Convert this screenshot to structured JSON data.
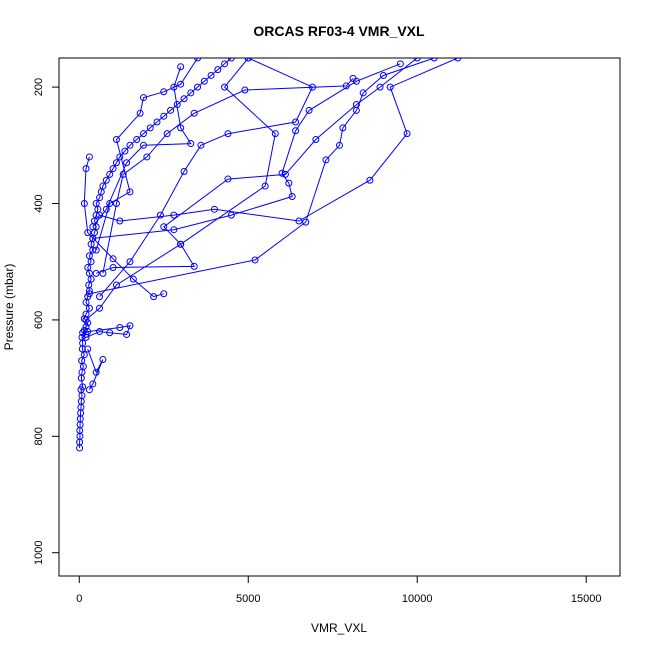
{
  "chart_data": {
    "type": "line",
    "title": "ORCAS RF03-4 VMR_VXL",
    "xlabel": "VMR_VXL",
    "ylabel": "Pressure (mbar)",
    "xlim": [
      -600,
      16000
    ],
    "ylim": [
      1040,
      150
    ],
    "y_reversed": true,
    "x_ticks": [
      0,
      5000,
      10000,
      15000
    ],
    "y_ticks": [
      200,
      400,
      600,
      800,
      1000
    ],
    "grid": false,
    "legend": "none",
    "markers": "open-circle",
    "color": "#0000ff",
    "series": [
      {
        "values": [
          {
            "x": 10,
            "y": 820
          },
          {
            "x": 10,
            "y": 810
          },
          {
            "x": 20,
            "y": 800
          },
          {
            "x": 15,
            "y": 790
          },
          {
            "x": 25,
            "y": 780
          },
          {
            "x": 30,
            "y": 770
          },
          {
            "x": 40,
            "y": 760
          },
          {
            "x": 50,
            "y": 750
          },
          {
            "x": 60,
            "y": 740
          },
          {
            "x": 80,
            "y": 730
          },
          {
            "x": 50,
            "y": 720
          },
          {
            "x": 100,
            "y": 715
          },
          {
            "x": 60,
            "y": 700
          },
          {
            "x": 80,
            "y": 690
          },
          {
            "x": 120,
            "y": 680
          },
          {
            "x": 70,
            "y": 670
          },
          {
            "x": 150,
            "y": 660
          },
          {
            "x": 90,
            "y": 650
          },
          {
            "x": 100,
            "y": 640
          },
          {
            "x": 80,
            "y": 630
          },
          {
            "x": 200,
            "y": 625
          },
          {
            "x": 100,
            "y": 622
          },
          {
            "x": 150,
            "y": 618
          },
          {
            "x": 200,
            "y": 612
          },
          {
            "x": 250,
            "y": 605
          },
          {
            "x": 150,
            "y": 598
          },
          {
            "x": 200,
            "y": 590
          },
          {
            "x": 300,
            "y": 580
          },
          {
            "x": 200,
            "y": 570
          },
          {
            "x": 250,
            "y": 560
          },
          {
            "x": 300,
            "y": 550
          },
          {
            "x": 280,
            "y": 540
          },
          {
            "x": 350,
            "y": 530
          },
          {
            "x": 300,
            "y": 520
          },
          {
            "x": 250,
            "y": 510
          },
          {
            "x": 350,
            "y": 500
          },
          {
            "x": 300,
            "y": 490
          },
          {
            "x": 400,
            "y": 480
          },
          {
            "x": 350,
            "y": 470
          },
          {
            "x": 400,
            "y": 460
          },
          {
            "x": 450,
            "y": 450
          },
          {
            "x": 500,
            "y": 440
          },
          {
            "x": 450,
            "y": 430
          },
          {
            "x": 500,
            "y": 420
          },
          {
            "x": 550,
            "y": 410
          },
          {
            "x": 500,
            "y": 400
          },
          {
            "x": 600,
            "y": 390
          },
          {
            "x": 650,
            "y": 380
          },
          {
            "x": 700,
            "y": 370
          },
          {
            "x": 800,
            "y": 360
          },
          {
            "x": 900,
            "y": 350
          },
          {
            "x": 1000,
            "y": 340
          },
          {
            "x": 1100,
            "y": 330
          },
          {
            "x": 1200,
            "y": 320
          },
          {
            "x": 1350,
            "y": 310
          },
          {
            "x": 1500,
            "y": 300
          },
          {
            "x": 1700,
            "y": 290
          },
          {
            "x": 1900,
            "y": 280
          },
          {
            "x": 2100,
            "y": 270
          },
          {
            "x": 2300,
            "y": 260
          },
          {
            "x": 2500,
            "y": 250
          },
          {
            "x": 2700,
            "y": 240
          },
          {
            "x": 2900,
            "y": 230
          },
          {
            "x": 3100,
            "y": 220
          },
          {
            "x": 3300,
            "y": 210
          },
          {
            "x": 3500,
            "y": 200
          },
          {
            "x": 3700,
            "y": 190
          },
          {
            "x": 3900,
            "y": 180
          },
          {
            "x": 4100,
            "y": 170
          },
          {
            "x": 4300,
            "y": 160
          },
          {
            "x": 4500,
            "y": 150
          }
        ]
      },
      {
        "values": [
          {
            "x": 300,
            "y": 320
          },
          {
            "x": 200,
            "y": 340
          },
          {
            "x": 150,
            "y": 400
          },
          {
            "x": 250,
            "y": 450
          },
          {
            "x": 1000,
            "y": 495
          },
          {
            "x": 1600,
            "y": 530
          },
          {
            "x": 2200,
            "y": 560
          },
          {
            "x": 2500,
            "y": 555
          }
        ]
      },
      {
        "values": [
          {
            "x": 600,
            "y": 420
          },
          {
            "x": 1200,
            "y": 430
          },
          {
            "x": 2800,
            "y": 420
          },
          {
            "x": 4000,
            "y": 410
          },
          {
            "x": 6500,
            "y": 430
          },
          {
            "x": 8600,
            "y": 360
          },
          {
            "x": 9700,
            "y": 280
          },
          {
            "x": 9200,
            "y": 200
          },
          {
            "x": 11200,
            "y": 150
          }
        ]
      },
      {
        "values": [
          {
            "x": 500,
            "y": 520
          },
          {
            "x": 1000,
            "y": 510
          },
          {
            "x": 3400,
            "y": 508
          },
          {
            "x": 3000,
            "y": 470
          },
          {
            "x": 2500,
            "y": 440
          },
          {
            "x": 4400,
            "y": 358
          },
          {
            "x": 6100,
            "y": 350
          },
          {
            "x": 7000,
            "y": 290
          },
          {
            "x": 8200,
            "y": 230
          },
          {
            "x": 8900,
            "y": 200
          },
          {
            "x": 10000,
            "y": 150
          }
        ]
      },
      {
        "values": [
          {
            "x": 300,
            "y": 555
          },
          {
            "x": 5200,
            "y": 497
          },
          {
            "x": 6700,
            "y": 432
          },
          {
            "x": 7300,
            "y": 325
          },
          {
            "x": 7700,
            "y": 300
          },
          {
            "x": 7800,
            "y": 270
          },
          {
            "x": 8200,
            "y": 240
          },
          {
            "x": 8400,
            "y": 210
          },
          {
            "x": 9000,
            "y": 180
          },
          {
            "x": 10500,
            "y": 150
          }
        ]
      },
      {
        "values": [
          {
            "x": 400,
            "y": 460
          },
          {
            "x": 2800,
            "y": 445
          },
          {
            "x": 4500,
            "y": 420
          },
          {
            "x": 6300,
            "y": 388
          },
          {
            "x": 6200,
            "y": 365
          },
          {
            "x": 6000,
            "y": 348
          },
          {
            "x": 6400,
            "y": 275
          },
          {
            "x": 6800,
            "y": 240
          },
          {
            "x": 8200,
            "y": 190
          },
          {
            "x": 9500,
            "y": 160
          }
        ]
      },
      {
        "values": [
          {
            "x": 250,
            "y": 620
          },
          {
            "x": 1200,
            "y": 613
          },
          {
            "x": 1500,
            "y": 610
          },
          {
            "x": 1400,
            "y": 625
          },
          {
            "x": 900,
            "y": 622
          },
          {
            "x": 600,
            "y": 620
          },
          {
            "x": 200,
            "y": 630
          }
        ]
      },
      {
        "values": [
          {
            "x": 200,
            "y": 600
          },
          {
            "x": 600,
            "y": 580
          },
          {
            "x": 1100,
            "y": 540
          },
          {
            "x": 3000,
            "y": 470
          },
          {
            "x": 5500,
            "y": 370
          },
          {
            "x": 5800,
            "y": 280
          },
          {
            "x": 4300,
            "y": 200
          },
          {
            "x": 5000,
            "y": 150
          }
        ]
      },
      {
        "values": [
          {
            "x": 400,
            "y": 440
          },
          {
            "x": 800,
            "y": 410
          },
          {
            "x": 1400,
            "y": 330
          },
          {
            "x": 1900,
            "y": 300
          },
          {
            "x": 3300,
            "y": 297
          },
          {
            "x": 3000,
            "y": 270
          },
          {
            "x": 2800,
            "y": 200
          },
          {
            "x": 3000,
            "y": 165
          }
        ]
      },
      {
        "values": [
          {
            "x": 500,
            "y": 480
          },
          {
            "x": 900,
            "y": 400
          },
          {
            "x": 1500,
            "y": 380
          },
          {
            "x": 1100,
            "y": 290
          },
          {
            "x": 1800,
            "y": 245
          },
          {
            "x": 1900,
            "y": 218
          },
          {
            "x": 2500,
            "y": 208
          },
          {
            "x": 3000,
            "y": 195
          },
          {
            "x": 3500,
            "y": 150
          }
        ]
      },
      {
        "values": [
          {
            "x": 700,
            "y": 520
          },
          {
            "x": 1100,
            "y": 400
          },
          {
            "x": 1300,
            "y": 350
          },
          {
            "x": 2000,
            "y": 320
          },
          {
            "x": 2600,
            "y": 280
          },
          {
            "x": 3400,
            "y": 245
          },
          {
            "x": 4900,
            "y": 205
          },
          {
            "x": 7900,
            "y": 198
          },
          {
            "x": 8100,
            "y": 185
          }
        ]
      },
      {
        "values": [
          {
            "x": 600,
            "y": 560
          },
          {
            "x": 1500,
            "y": 500
          },
          {
            "x": 2400,
            "y": 420
          },
          {
            "x": 3100,
            "y": 345
          },
          {
            "x": 3600,
            "y": 300
          },
          {
            "x": 4400,
            "y": 280
          },
          {
            "x": 6400,
            "y": 260
          },
          {
            "x": 6900,
            "y": 200
          },
          {
            "x": 5000,
            "y": 150
          }
        ]
      },
      {
        "values": [
          {
            "x": 250,
            "y": 650
          },
          {
            "x": 500,
            "y": 690
          },
          {
            "x": 700,
            "y": 668
          },
          {
            "x": 400,
            "y": 710
          },
          {
            "x": 300,
            "y": 720
          }
        ]
      }
    ]
  }
}
